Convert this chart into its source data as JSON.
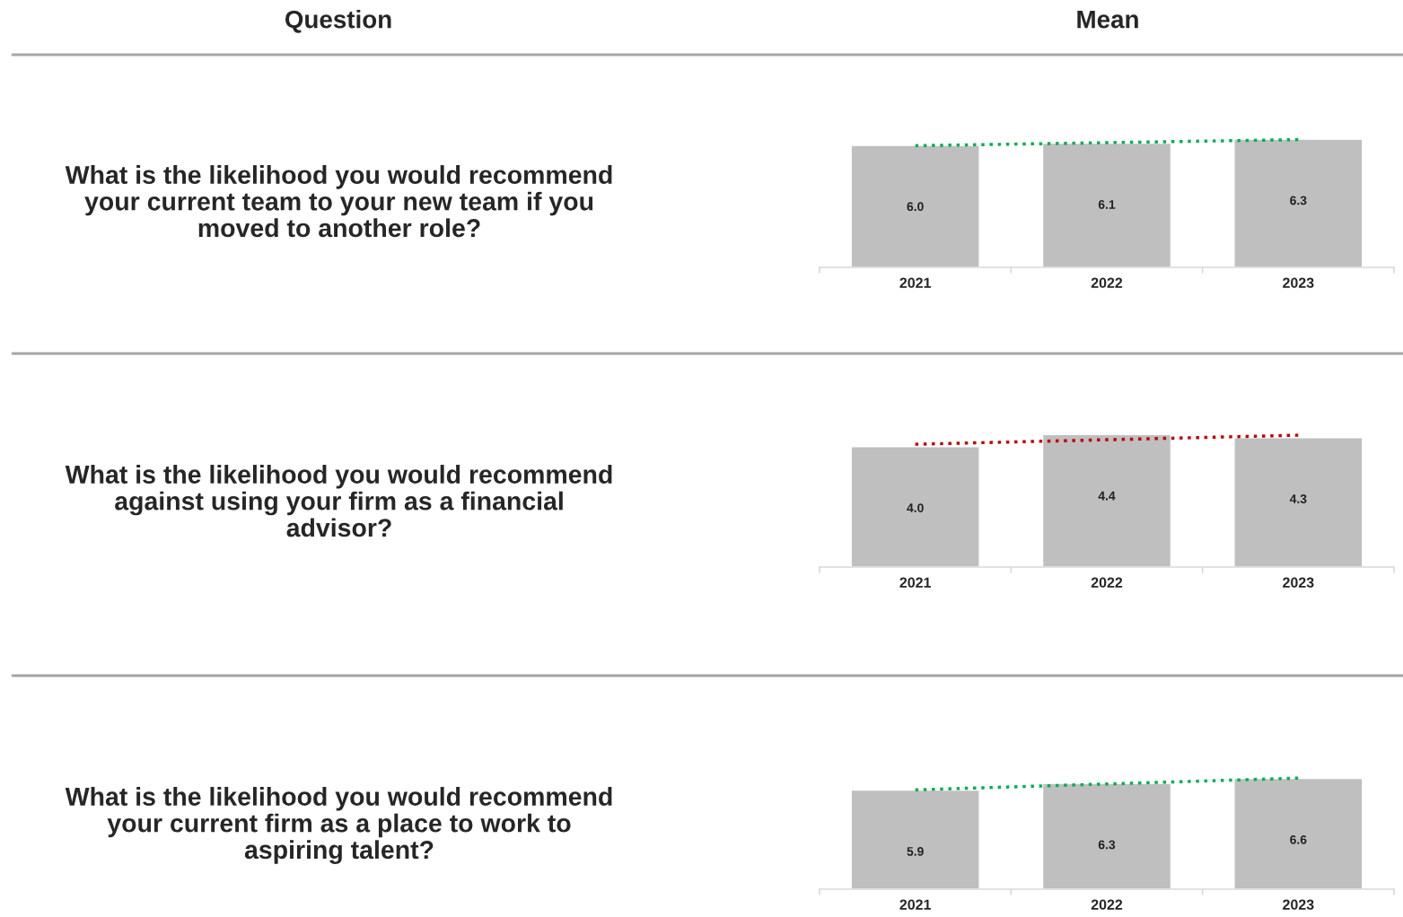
{
  "chart_data": [
    {
      "type": "bar",
      "ylabel": "What is the likelihood you would recommend\nyour current team to your new team if you\nmoved to another role?",
      "annotations": [
        "Question",
        "Mean"
      ],
      "categories": [
        "2021",
        "2022",
        "2023"
      ],
      "series": [
        {
          "color": "#bfbfbf",
          "values": [
            6.0,
            6.1,
            6.3
          ],
          "value_labels": [
            "6.0",
            "6.1",
            "6.3"
          ]
        },
        {
          "type": "line",
          "color": "#00b050",
          "line_style": "dotted",
          "values": [
            5.98,
            6.13,
            6.28
          ]
        }
      ]
    },
    {
      "type": "bar",
      "ylabel": "What is the likelihood you would recommend\nagainst using your firm as a financial\nadvisor?",
      "categories": [
        "2021",
        "2022",
        "2023"
      ],
      "series": [
        {
          "color": "#bfbfbf",
          "values": [
            4.0,
            4.4,
            4.3
          ],
          "value_labels": [
            "4.0",
            "4.4",
            "4.3"
          ]
        },
        {
          "type": "line",
          "color": "#c00000",
          "line_style": "dotted",
          "values": [
            4.08,
            4.23,
            4.38
          ]
        }
      ]
    },
    {
      "type": "bar",
      "ylabel": "What is the likelihood you would recommend\nyour current firm as a place to work to\naspiring talent?",
      "categories": [
        "2021",
        "2022",
        "2023"
      ],
      "series": [
        {
          "color": "#bfbfbf",
          "values": [
            5.9,
            6.3,
            6.6
          ],
          "value_labels": [
            "5.9",
            "6.3",
            "6.6"
          ]
        },
        {
          "type": "line",
          "color": "#00b050",
          "line_style": "dotted",
          "values": [
            5.92,
            6.27,
            6.62
          ]
        }
      ]
    }
  ]
}
